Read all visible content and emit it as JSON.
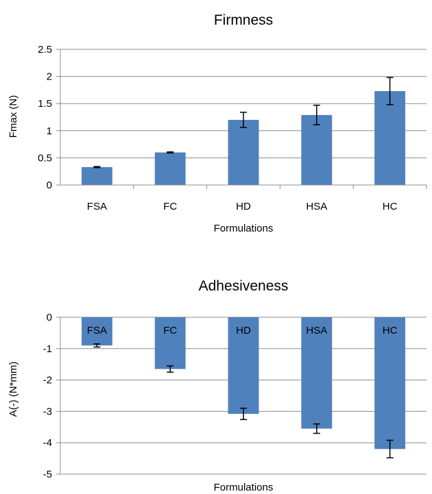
{
  "chart_data": [
    {
      "type": "bar",
      "title": "Firmness",
      "xlabel": "Formulations",
      "ylabel": "Fmax (N)",
      "categories": [
        "FSA",
        "FC",
        "HD",
        "HSA",
        "HC"
      ],
      "values": [
        0.33,
        0.6,
        1.2,
        1.29,
        1.73
      ],
      "errors": [
        0.01,
        0.01,
        0.14,
        0.18,
        0.25
      ],
      "ylim": [
        0,
        2.5
      ],
      "yticks": [
        0,
        0.5,
        1,
        1.5,
        2,
        2.5
      ],
      "ytick_labels": [
        "0",
        "0.5",
        "1",
        "1.5",
        "2",
        "2.5"
      ],
      "grid": true,
      "bar_color": "#4f81bd"
    },
    {
      "type": "bar",
      "title": "Adhesiveness",
      "xlabel": "Formulations",
      "ylabel": "A(-) (N*mm)",
      "categories": [
        "FSA",
        "FC",
        "HD",
        "HSA",
        "HC"
      ],
      "values": [
        -0.9,
        -1.65,
        -3.08,
        -3.55,
        -4.2
      ],
      "errors": [
        0.05,
        0.1,
        0.18,
        0.15,
        0.28
      ],
      "ylim": [
        -5,
        0
      ],
      "yticks": [
        0,
        -1,
        -2,
        -3,
        -4,
        -5
      ],
      "ytick_labels": [
        "0",
        "-1",
        "-2",
        "-3",
        "-4",
        "-5"
      ],
      "grid": true,
      "bar_color": "#4f81bd"
    }
  ]
}
